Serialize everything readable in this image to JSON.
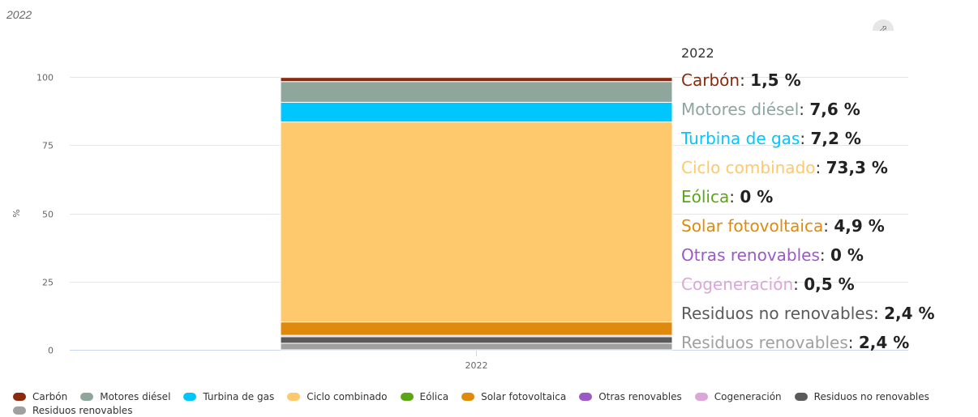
{
  "top_title": "2022",
  "export_icon": "export-menu-icon",
  "chart_data": {
    "type": "bar",
    "stacked": true,
    "categories": [
      "2022"
    ],
    "ylabel": "%",
    "ylim": [
      0,
      100
    ],
    "yticks": [
      0,
      25,
      50,
      75,
      100
    ],
    "grid": true,
    "series": [
      {
        "name": "Carbón",
        "values": [
          1.5
        ],
        "color": "#8b2a0c"
      },
      {
        "name": "Motores diésel",
        "values": [
          7.6
        ],
        "color": "#8fa69c"
      },
      {
        "name": "Turbina de gas",
        "values": [
          7.2
        ],
        "color": "#00c6ff"
      },
      {
        "name": "Ciclo combinado",
        "values": [
          73.3
        ],
        "color": "#fdc96c"
      },
      {
        "name": "Eólica",
        "values": [
          0
        ],
        "color": "#5ba617"
      },
      {
        "name": "Solar fotovoltaica",
        "values": [
          4.9
        ],
        "color": "#e08a0b"
      },
      {
        "name": "Otras renovables",
        "values": [
          0
        ],
        "color": "#9b59c6"
      },
      {
        "name": "Cogeneración",
        "values": [
          0.5
        ],
        "color": "#dba7d9"
      },
      {
        "name": "Residuos no renovables",
        "values": [
          2.4
        ],
        "color": "#5a5a5a"
      },
      {
        "name": "Residuos renovables",
        "values": [
          2.4
        ],
        "color": "#a0a0a0"
      }
    ],
    "legend_position": "bottom"
  },
  "tooltip": {
    "title": "2022",
    "rows": [
      {
        "label": "Carbón",
        "value": "1,5 %",
        "color": "#8b2a0c"
      },
      {
        "label": "Motores diésel",
        "value": "7,6 %",
        "color": "#8fa69c"
      },
      {
        "label": "Turbina de gas",
        "value": "7,2 %",
        "color": "#00c6ff"
      },
      {
        "label": "Ciclo combinado",
        "value": "73,3 %",
        "color": "#fdc96c"
      },
      {
        "label": "Eólica",
        "value": "0 %",
        "color": "#5ba617"
      },
      {
        "label": "Solar fotovoltaica",
        "value": "4,9 %",
        "color": "#e08a0b"
      },
      {
        "label": "Otras renovables",
        "value": "0 %",
        "color": "#9b59c6"
      },
      {
        "label": "Cogeneración",
        "value": "0,5 %",
        "color": "#dba7d9"
      },
      {
        "label": "Residuos no renovables",
        "value": "2,4 %",
        "color": "#5a5a5a"
      },
      {
        "label": "Residuos renovables",
        "value": "2,4 %",
        "color": "#a0a0a0"
      }
    ]
  }
}
